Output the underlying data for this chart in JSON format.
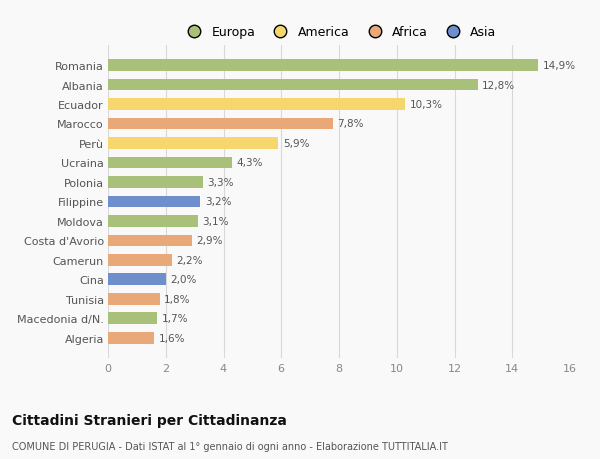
{
  "countries": [
    "Romania",
    "Albania",
    "Ecuador",
    "Marocco",
    "Perù",
    "Ucraina",
    "Polonia",
    "Filippine",
    "Moldova",
    "Costa d'Avorio",
    "Camerun",
    "Cina",
    "Tunisia",
    "Macedonia d/N.",
    "Algeria"
  ],
  "values": [
    14.9,
    12.8,
    10.3,
    7.8,
    5.9,
    4.3,
    3.3,
    3.2,
    3.1,
    2.9,
    2.2,
    2.0,
    1.8,
    1.7,
    1.6
  ],
  "labels": [
    "14,9%",
    "12,8%",
    "10,3%",
    "7,8%",
    "5,9%",
    "4,3%",
    "3,3%",
    "3,2%",
    "3,1%",
    "2,9%",
    "2,2%",
    "2,0%",
    "1,8%",
    "1,7%",
    "1,6%"
  ],
  "regions": [
    "Europa",
    "Europa",
    "America",
    "Africa",
    "America",
    "Europa",
    "Europa",
    "Asia",
    "Europa",
    "Africa",
    "Africa",
    "Asia",
    "Africa",
    "Europa",
    "Africa"
  ],
  "colors": {
    "Europa": "#a8c07a",
    "America": "#f5d76e",
    "Africa": "#e8a878",
    "Asia": "#6e8fcc"
  },
  "xlim": [
    0,
    16
  ],
  "xticks": [
    0,
    2,
    4,
    6,
    8,
    10,
    12,
    14,
    16
  ],
  "title_main": "Cittadini Stranieri per Cittadinanza",
  "title_sub": "COMUNE DI PERUGIA - Dati ISTAT al 1° gennaio di ogni anno - Elaborazione TUTTITALIA.IT",
  "background_color": "#f9f9f9",
  "grid_color": "#d8d8d8",
  "legend_order": [
    "Europa",
    "America",
    "Africa",
    "Asia"
  ]
}
